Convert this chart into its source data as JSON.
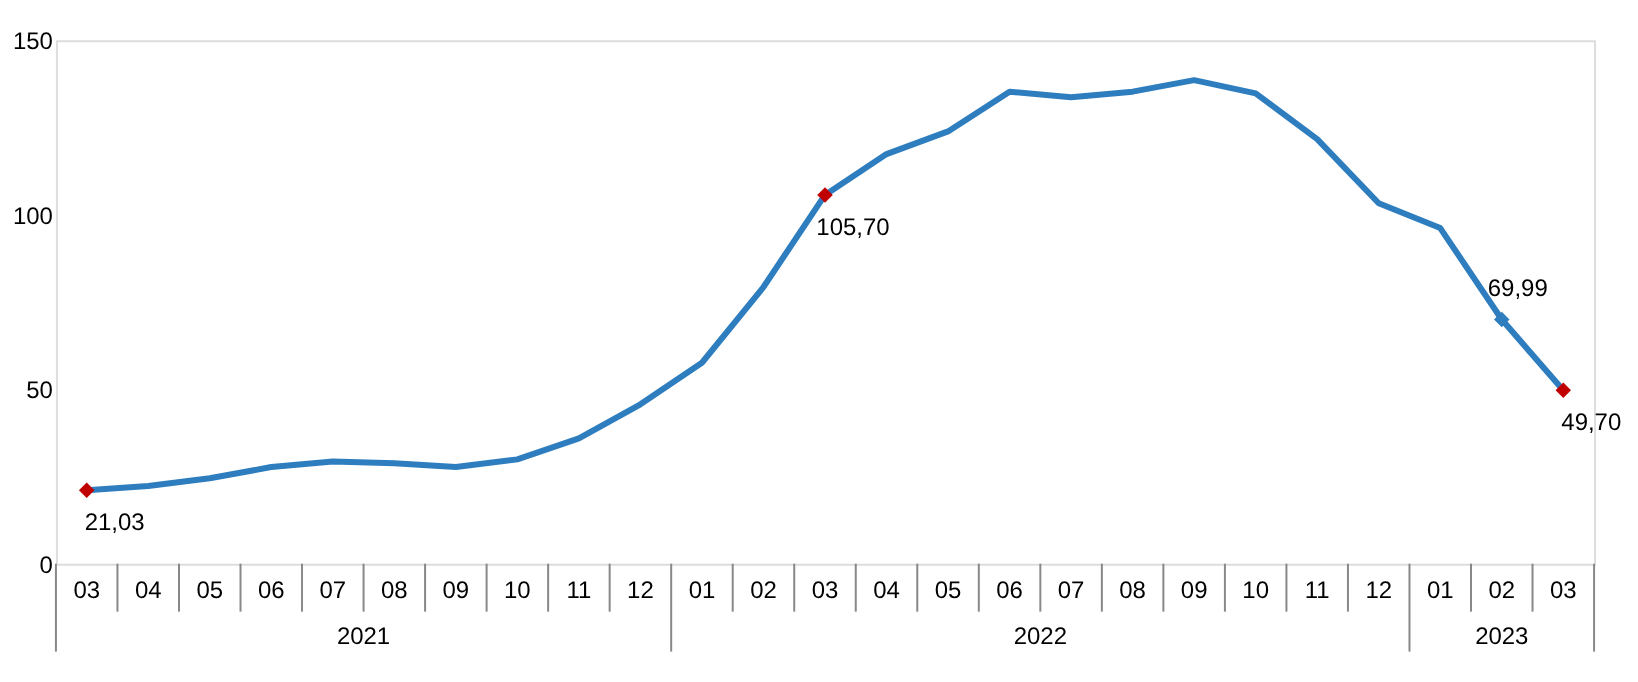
{
  "chart_data": {
    "type": "line",
    "categories": [
      "03",
      "04",
      "05",
      "06",
      "07",
      "08",
      "09",
      "10",
      "11",
      "12",
      "01",
      "02",
      "03",
      "04",
      "05",
      "06",
      "07",
      "08",
      "09",
      "10",
      "11",
      "12",
      "01",
      "02",
      "03"
    ],
    "annotations": [
      "2021",
      "2022",
      "2023"
    ],
    "ylim": [
      0,
      150
    ],
    "yticks": [
      0,
      50,
      100,
      150
    ],
    "grid": false,
    "series": [
      {
        "color": "#2e7ebf",
        "line_style": "solid",
        "values": [
          21.03,
          22.3,
          24.5,
          27.7,
          29.3,
          28.8,
          27.7,
          29.9,
          35.9,
          45.7,
          57.6,
          79.3,
          105.7,
          117.4,
          123.9,
          135.3,
          133.7,
          135.3,
          138.6,
          134.8,
          121.7,
          103.3,
          96.2,
          69.99,
          49.7
        ],
        "colors": [
          "#c00000",
          null,
          null,
          null,
          null,
          null,
          null,
          null,
          null,
          null,
          null,
          null,
          "#c00000",
          null,
          null,
          null,
          null,
          null,
          null,
          null,
          null,
          null,
          null,
          "#2e7ebf",
          "#c00000"
        ],
        "value_labels": [
          "21,03",
          null,
          null,
          null,
          null,
          null,
          null,
          null,
          null,
          null,
          null,
          null,
          "105,70",
          null,
          null,
          null,
          null,
          null,
          null,
          null,
          null,
          null,
          null,
          "69,99",
          "49,70"
        ]
      }
    ]
  }
}
